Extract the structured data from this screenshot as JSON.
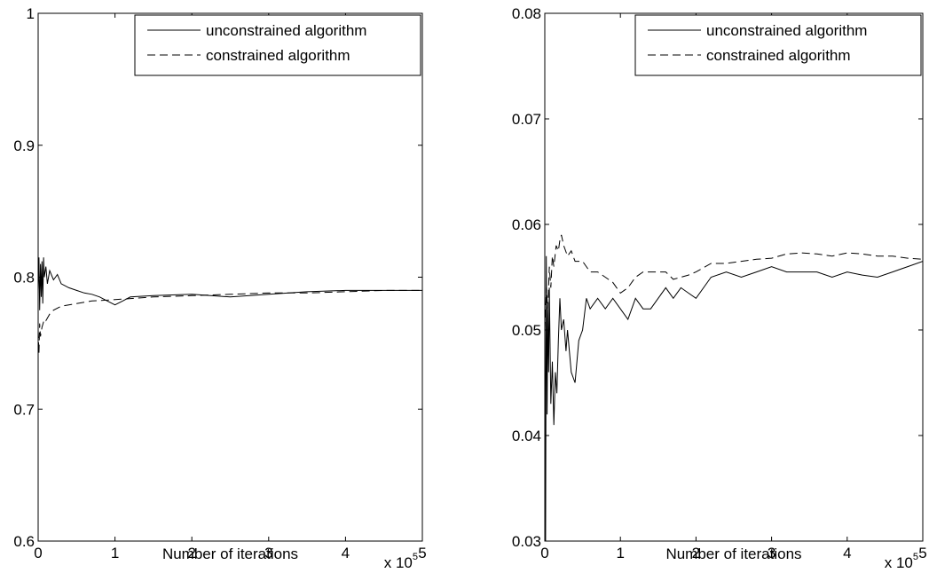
{
  "colors": {
    "background": "#ffffff",
    "axes": "#000000",
    "series": "#000000"
  },
  "chart_data": [
    {
      "type": "line",
      "xlabel": "Number of iterations",
      "x_multiplier_label": "x 10",
      "x_multiplier_exponent": "5",
      "xlim": [
        0,
        5
      ],
      "ylim": [
        0.6,
        1
      ],
      "x_ticks": [
        0,
        1,
        2,
        3,
        4,
        5
      ],
      "x_tick_labels": [
        "0",
        "1",
        "2",
        "3",
        "4",
        "5"
      ],
      "y_ticks": [
        0.6,
        0.7,
        0.8,
        0.9,
        1.0
      ],
      "y_tick_labels": [
        "0.6",
        "0.7",
        "0.8",
        "0.9",
        "1"
      ],
      "grid": false,
      "legend_position": "top-right",
      "series": [
        {
          "name": "unconstrained algorithm",
          "style": "solid",
          "x": [
            0,
            0.01,
            0.02,
            0.03,
            0.04,
            0.05,
            0.06,
            0.07,
            0.08,
            0.1,
            0.12,
            0.15,
            0.2,
            0.25,
            0.3,
            0.4,
            0.5,
            0.6,
            0.7,
            0.8,
            0.9,
            1.0,
            1.1,
            1.2,
            1.5,
            2.0,
            2.5,
            3.0,
            3.5,
            4.0,
            4.5,
            5.0
          ],
          "y": [
            0.79,
            0.815,
            0.775,
            0.81,
            0.785,
            0.812,
            0.78,
            0.815,
            0.8,
            0.808,
            0.795,
            0.805,
            0.798,
            0.802,
            0.795,
            0.792,
            0.79,
            0.788,
            0.787,
            0.785,
            0.782,
            0.779,
            0.782,
            0.785,
            0.786,
            0.787,
            0.785,
            0.787,
            0.789,
            0.79,
            0.79,
            0.79
          ]
        },
        {
          "name": "constrained algorithm",
          "style": "dashed",
          "x": [
            0,
            0.01,
            0.02,
            0.03,
            0.05,
            0.08,
            0.1,
            0.15,
            0.2,
            0.3,
            0.4,
            0.5,
            0.7,
            1.0,
            1.5,
            2.0,
            2.5,
            3.0,
            3.5,
            4.0,
            4.5,
            5.0
          ],
          "y": [
            0.76,
            0.742,
            0.765,
            0.755,
            0.762,
            0.768,
            0.767,
            0.772,
            0.775,
            0.778,
            0.779,
            0.78,
            0.782,
            0.783,
            0.785,
            0.786,
            0.787,
            0.788,
            0.788,
            0.789,
            0.79,
            0.79
          ]
        }
      ]
    },
    {
      "type": "line",
      "xlabel": "Number of iterations",
      "x_multiplier_label": "x 10",
      "x_multiplier_exponent": "5",
      "xlim": [
        0,
        5
      ],
      "ylim": [
        0.03,
        0.08
      ],
      "x_ticks": [
        0,
        1,
        2,
        3,
        4,
        5
      ],
      "x_tick_labels": [
        "0",
        "1",
        "2",
        "3",
        "4",
        "5"
      ],
      "y_ticks": [
        0.03,
        0.04,
        0.05,
        0.06,
        0.07,
        0.08
      ],
      "y_tick_labels": [
        "0.03",
        "0.04",
        "0.05",
        "0.06",
        "0.07",
        "0.08"
      ],
      "grid": false,
      "legend_position": "top-right",
      "series": [
        {
          "name": "unconstrained algorithm",
          "style": "solid",
          "x": [
            0,
            0.01,
            0.02,
            0.03,
            0.04,
            0.05,
            0.06,
            0.08,
            0.1,
            0.12,
            0.14,
            0.16,
            0.18,
            0.2,
            0.22,
            0.25,
            0.28,
            0.3,
            0.35,
            0.4,
            0.45,
            0.5,
            0.55,
            0.6,
            0.7,
            0.8,
            0.9,
            1.0,
            1.1,
            1.2,
            1.3,
            1.4,
            1.5,
            1.6,
            1.7,
            1.8,
            1.9,
            2.0,
            2.2,
            2.4,
            2.6,
            2.8,
            3.0,
            3.2,
            3.4,
            3.6,
            3.8,
            4.0,
            4.2,
            4.4,
            4.6,
            4.8,
            5.0
          ],
          "y": [
            0.056,
            0.03,
            0.057,
            0.042,
            0.052,
            0.046,
            0.054,
            0.043,
            0.047,
            0.041,
            0.046,
            0.044,
            0.049,
            0.053,
            0.05,
            0.051,
            0.048,
            0.05,
            0.046,
            0.045,
            0.049,
            0.05,
            0.053,
            0.052,
            0.053,
            0.052,
            0.053,
            0.052,
            0.051,
            0.053,
            0.052,
            0.052,
            0.053,
            0.054,
            0.053,
            0.054,
            0.0535,
            0.053,
            0.055,
            0.0555,
            0.055,
            0.0555,
            0.056,
            0.0555,
            0.0555,
            0.0555,
            0.055,
            0.0555,
            0.0552,
            0.055,
            0.0555,
            0.056,
            0.0565
          ]
        },
        {
          "name": "constrained algorithm",
          "style": "dashed",
          "x": [
            0,
            0.02,
            0.04,
            0.06,
            0.08,
            0.1,
            0.12,
            0.15,
            0.18,
            0.2,
            0.22,
            0.25,
            0.3,
            0.35,
            0.4,
            0.5,
            0.6,
            0.7,
            0.8,
            0.9,
            1.0,
            1.1,
            1.2,
            1.3,
            1.4,
            1.5,
            1.6,
            1.7,
            1.8,
            1.9,
            2.0,
            2.2,
            2.4,
            2.6,
            2.8,
            3.0,
            3.2,
            3.4,
            3.6,
            3.8,
            4.0,
            4.2,
            4.4,
            4.6,
            4.8,
            5.0
          ],
          "y": [
            0.05,
            0.054,
            0.052,
            0.056,
            0.054,
            0.057,
            0.056,
            0.058,
            0.0575,
            0.0585,
            0.059,
            0.058,
            0.057,
            0.0575,
            0.0565,
            0.0565,
            0.0555,
            0.0555,
            0.055,
            0.0545,
            0.0535,
            0.054,
            0.055,
            0.0555,
            0.0555,
            0.0555,
            0.0555,
            0.0548,
            0.055,
            0.0552,
            0.0555,
            0.0563,
            0.0563,
            0.0565,
            0.0567,
            0.0568,
            0.0572,
            0.0573,
            0.0572,
            0.057,
            0.0573,
            0.0572,
            0.057,
            0.057,
            0.0568,
            0.0567
          ]
        }
      ]
    }
  ]
}
